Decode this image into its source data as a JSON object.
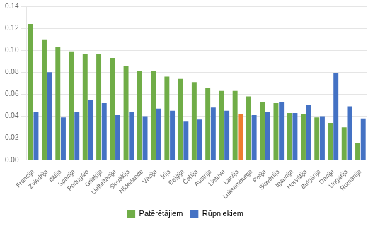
{
  "chart_data": {
    "type": "bar",
    "categories": [
      "Francija",
      "Zviedrija",
      "Itālija",
      "Spānija",
      "Portugāle",
      "Grieķija",
      "Lielbritānija",
      "Slovākija",
      "Nīderlande",
      "Vācija",
      "Īrija",
      "Beļģija",
      "Čehija",
      "Austrija",
      "Lietuva",
      "Latvija",
      "Luksemburga",
      "Polija",
      "Slovēnija",
      "Igaunija",
      "Horvātija",
      "Bulgārija",
      "Dānija",
      "Ungārija",
      "Rumānija"
    ],
    "series": [
      {
        "name": "Patērētājiem",
        "color": "#70AD47",
        "values": [
          0.124,
          0.11,
          0.103,
          0.099,
          0.097,
          0.097,
          0.093,
          0.086,
          0.081,
          0.081,
          0.076,
          0.074,
          0.071,
          0.066,
          0.063,
          0.063,
          0.058,
          0.053,
          0.052,
          0.043,
          0.042,
          0.039,
          0.034,
          0.03,
          0.016
        ]
      },
      {
        "name": "Rūpniekiem",
        "color": "#4472C4",
        "colors": [
          "#4472C4",
          "#4472C4",
          "#4472C4",
          "#4472C4",
          "#4472C4",
          "#4472C4",
          "#4472C4",
          "#4472C4",
          "#4472C4",
          "#4472C4",
          "#4472C4",
          "#4472C4",
          "#4472C4",
          "#4472C4",
          "#4472C4",
          "#ED7D31",
          "#4472C4",
          "#4472C4",
          "#4472C4",
          "#4472C4",
          "#4472C4",
          "#4472C4",
          "#4472C4",
          "#4472C4",
          "#4472C4"
        ],
        "values": [
          0.044,
          0.08,
          0.039,
          0.044,
          0.055,
          0.052,
          0.041,
          0.044,
          0.04,
          0.047,
          0.045,
          0.035,
          0.037,
          0.048,
          0.045,
          0.042,
          0.041,
          0.044,
          0.053,
          0.043,
          0.05,
          0.04,
          0.079,
          0.049,
          0.038
        ]
      }
    ],
    "ylim": [
      0,
      0.14
    ],
    "yticks": [
      {
        "value": 0,
        "label": "0.00"
      },
      {
        "value": 0.02,
        "label": "0.02"
      },
      {
        "value": 0.04,
        "label": "0.04"
      },
      {
        "value": 0.06,
        "label": "0.06"
      },
      {
        "value": 0.08,
        "label": "0.08"
      },
      {
        "value": 0.1,
        "label": "0.10"
      },
      {
        "value": 0.12,
        "label": "0.12"
      },
      {
        "value": 0.14,
        "label": "0.14"
      }
    ],
    "grid": true,
    "legend": "bottom"
  }
}
